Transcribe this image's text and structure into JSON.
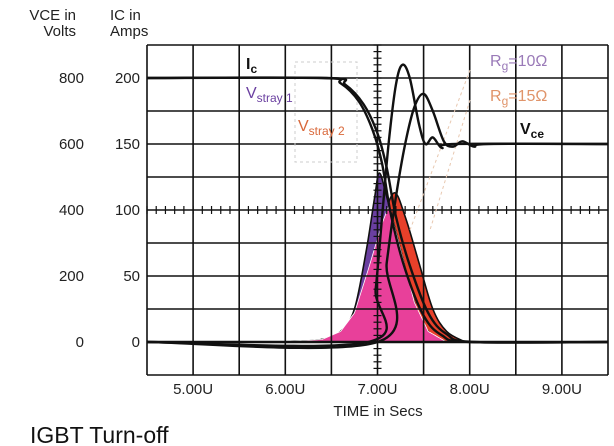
{
  "title": "IGBT Turn-off",
  "chart_data": {
    "type": "line",
    "title": "IGBT Turn-off",
    "xlabel": "TIME in Secs",
    "ylabel_left": [
      "VCE in",
      "Volts"
    ],
    "ylabel_right": [
      "IC in",
      "Amps"
    ],
    "x_unit_suffix": "U",
    "xlim": [
      4.5,
      9.5
    ],
    "ylim": [
      -25,
      225
    ],
    "x_ticks": [
      "5.00U",
      "6.00U",
      "7.00U",
      "8.00U",
      "9.00U"
    ],
    "x_tick_values": [
      5,
      6,
      7,
      8,
      9
    ],
    "y_ticks_ic": [
      "200",
      "150",
      "100",
      "50",
      "0"
    ],
    "y_ticks_vce": [
      "800",
      "600",
      "400",
      "200",
      "0"
    ],
    "y_tick_values": [
      200,
      150,
      100,
      50,
      0
    ],
    "grid": true,
    "annotations": {
      "ic": {
        "main": "I",
        "sub": "c"
      },
      "vstray1": {
        "main": "V",
        "sub": "stray 1"
      },
      "vstray2": {
        "main": "V",
        "sub": "stray 2"
      },
      "rg10": {
        "main": "R",
        "sub": "g",
        "rest": "=10Ω"
      },
      "rg15": {
        "main": "R",
        "sub": "g",
        "rest": "=15Ω"
      },
      "vce": {
        "main": "V",
        "sub": "ce"
      }
    },
    "colors": {
      "grid": "#111111",
      "curve": "#111111",
      "vstray1": "#6a3fa0",
      "vstray2": "#e8402a",
      "overlap": "#e8409a",
      "rg10_label": "#9a7ab8",
      "rg15_label": "#e0946a"
    },
    "series": [
      {
        "x": [
          4.5,
          6.4,
          6.6,
          6.8,
          6.95,
          7.05,
          7.15,
          7.3,
          7.5,
          7.7,
          8.0,
          9.5
        ],
        "y": [
          200,
          200,
          196,
          182,
          160,
          135,
          95,
          55,
          20,
          5,
          0,
          0
        ]
      },
      {
        "x": [
          4.5,
          6.45,
          6.65,
          6.85,
          7.0,
          7.1,
          7.2,
          7.35,
          7.55,
          7.75,
          8.05,
          9.5
        ],
        "y": [
          200,
          200,
          195,
          180,
          158,
          132,
          95,
          58,
          22,
          6,
          0,
          0
        ]
      },
      {
        "x": [
          4.5,
          6.9,
          6.98,
          7.05,
          7.12,
          7.2,
          7.27,
          7.35,
          7.45,
          7.52,
          7.6,
          7.7,
          7.85,
          9.5
        ],
        "y": [
          0,
          0,
          40,
          95,
          150,
          195,
          210,
          200,
          165,
          150,
          155,
          147,
          150,
          150
        ]
      },
      {
        "x": [
          4.5,
          7.0,
          7.1,
          7.2,
          7.3,
          7.4,
          7.5,
          7.6,
          7.72,
          7.82,
          7.92,
          8.05,
          8.2,
          9.5
        ],
        "y": [
          0,
          0,
          60,
          110,
          150,
          178,
          188,
          175,
          152,
          148,
          152,
          148,
          150,
          150
        ]
      },
      {
        "x": [
          6.0,
          6.4,
          6.6,
          6.75,
          6.88,
          6.97,
          7.02,
          7.1,
          7.25,
          7.4,
          7.55,
          7.75
        ],
        "y": [
          0,
          2,
          8,
          25,
          70,
          110,
          128,
          110,
          70,
          30,
          8,
          0
        ]
      },
      {
        "x": [
          6.0,
          6.4,
          6.6,
          6.75,
          6.9,
          7.05,
          7.18,
          7.3,
          7.45,
          7.6,
          7.75,
          7.95
        ],
        "y": [
          0,
          2,
          8,
          22,
          55,
          90,
          113,
          95,
          60,
          25,
          8,
          0
        ]
      }
    ]
  }
}
